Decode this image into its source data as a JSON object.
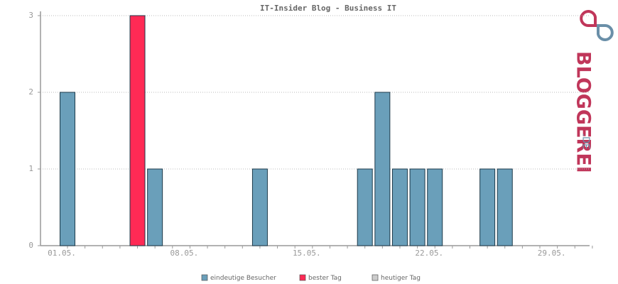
{
  "chart_data": {
    "type": "bar",
    "title": "IT-Insider Blog - Business IT",
    "categories": [
      "01.05.",
      null,
      null,
      null,
      null,
      null,
      null,
      "08.05.",
      null,
      null,
      null,
      null,
      null,
      null,
      "15.05.",
      null,
      null,
      null,
      null,
      null,
      null,
      "22.05.",
      null,
      null,
      null,
      null,
      null,
      null,
      "29.05.",
      null,
      null
    ],
    "series": [
      {
        "name": "eindeutige Besucher",
        "color": "#6a9fba",
        "values": [
          2,
          0,
          0,
          0,
          null,
          1,
          0,
          0,
          0,
          0,
          0,
          1,
          0,
          0,
          0,
          0,
          0,
          1,
          2,
          1,
          1,
          1,
          0,
          0,
          1,
          1,
          0,
          0,
          0,
          0,
          0
        ]
      },
      {
        "name": "bester Tag",
        "color": "#ff2a55",
        "values": [
          null,
          null,
          null,
          null,
          3,
          null,
          null,
          null,
          null,
          null,
          null,
          null,
          null,
          null,
          null,
          null,
          null,
          null,
          null,
          null,
          null,
          null,
          null,
          null,
          null,
          null,
          null,
          null,
          null,
          null,
          null
        ]
      },
      {
        "name": "heutiger Tag",
        "color": "#cccccc",
        "values": [
          null,
          null,
          null,
          null,
          null,
          null,
          null,
          null,
          null,
          null,
          null,
          null,
          null,
          null,
          null,
          null,
          null,
          null,
          null,
          null,
          null,
          null,
          null,
          null,
          null,
          null,
          null,
          null,
          null,
          null,
          null
        ]
      }
    ],
    "ylim": [
      0,
      3
    ],
    "yticks": [
      0,
      1,
      2,
      3
    ],
    "grid": true,
    "watermark": "BLOGGEREI",
    "watermark_suffix": ".DE"
  }
}
